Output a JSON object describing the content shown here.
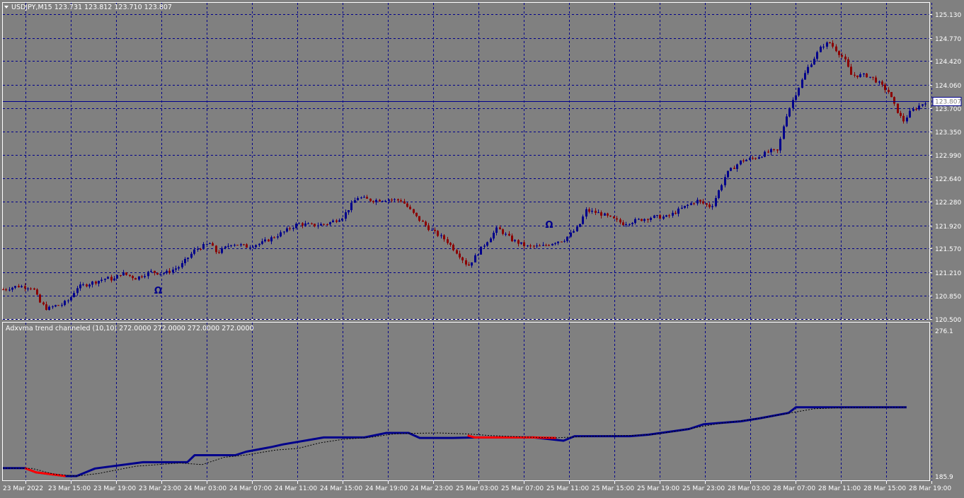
{
  "chart": {
    "symbol_header": "USDJPY,M15  123.731 123.812 123.710 123.807",
    "current_price_label": "123.807",
    "indicator_header": "Adxvma trend channeled (10,10) 272.0000 272.0000 272.0000 272.0000",
    "colors": {
      "background": "#808080",
      "grid": "#00008b",
      "bull_candle": "#00008b",
      "bear_candle": "#8b0000",
      "uptrend": "#00008b",
      "downtrend": "#ff0000",
      "signal_dotted": "#000000",
      "axis_text": "#ffffff"
    }
  },
  "chart_data": [
    {
      "type": "candlestick",
      "title": "USDJPY,M15",
      "x_tick_labels": [
        "23 Mar 2022",
        "23 Mar 15:00",
        "23 Mar 19:00",
        "23 Mar 23:00",
        "24 Mar 03:00",
        "24 Mar 07:00",
        "24 Mar 11:00",
        "24 Mar 15:00",
        "24 Mar 19:00",
        "24 Mar 23:00",
        "25 Mar 03:00",
        "25 Mar 07:00",
        "25 Mar 11:00",
        "25 Mar 15:00",
        "25 Mar 19:00",
        "25 Mar 23:00",
        "28 Mar 03:00",
        "28 Mar 07:00",
        "28 Mar 11:00",
        "28 Mar 15:00",
        "28 Mar 19:00"
      ],
      "y_tick_labels": [
        "125.130",
        "124.770",
        "124.420",
        "124.060",
        "123.700",
        "123.350",
        "122.990",
        "122.640",
        "122.280",
        "121.920",
        "121.570",
        "121.210",
        "120.850",
        "120.500"
      ],
      "ylim": [
        120.5,
        125.13
      ],
      "last_price": 123.807,
      "close_path": [
        [
          0,
          120.95
        ],
        [
          4,
          121.0
        ],
        [
          8,
          120.98
        ],
        [
          10,
          120.75
        ],
        [
          12,
          120.65
        ],
        [
          14,
          120.7
        ],
        [
          16,
          120.72
        ],
        [
          18,
          120.8
        ],
        [
          20,
          120.98
        ],
        [
          24,
          121.05
        ],
        [
          28,
          121.12
        ],
        [
          30,
          121.1
        ],
        [
          32,
          121.2
        ],
        [
          36,
          121.12
        ],
        [
          40,
          121.22
        ],
        [
          42,
          121.2
        ],
        [
          44,
          121.2
        ],
        [
          48,
          121.3
        ],
        [
          52,
          121.55
        ],
        [
          56,
          121.65
        ],
        [
          58,
          121.5
        ],
        [
          62,
          121.65
        ],
        [
          66,
          121.6
        ],
        [
          70,
          121.65
        ],
        [
          76,
          121.82
        ],
        [
          80,
          121.95
        ],
        [
          84,
          121.92
        ],
        [
          88,
          121.95
        ],
        [
          92,
          122.05
        ],
        [
          96,
          122.35
        ],
        [
          100,
          122.3
        ],
        [
          104,
          122.32
        ],
        [
          108,
          122.3
        ],
        [
          112,
          122.05
        ],
        [
          116,
          121.85
        ],
        [
          120,
          121.7
        ],
        [
          124,
          121.45
        ],
        [
          126,
          121.3
        ],
        [
          130,
          121.6
        ],
        [
          134,
          121.88
        ],
        [
          138,
          121.7
        ],
        [
          142,
          121.6
        ],
        [
          146,
          121.6
        ],
        [
          150,
          121.68
        ],
        [
          152,
          121.7
        ],
        [
          156,
          121.9
        ],
        [
          158,
          122.15
        ],
        [
          162,
          122.1
        ],
        [
          166,
          122.0
        ],
        [
          168,
          121.95
        ],
        [
          172,
          122.0
        ],
        [
          176,
          122.05
        ],
        [
          180,
          122.05
        ],
        [
          184,
          122.18
        ],
        [
          188,
          122.3
        ],
        [
          192,
          122.2
        ],
        [
          196,
          122.7
        ],
        [
          200,
          122.9
        ],
        [
          204,
          122.95
        ],
        [
          208,
          123.05
        ],
        [
          210,
          123.05
        ],
        [
          212,
          123.55
        ],
        [
          214,
          123.82
        ],
        [
          218,
          124.3
        ],
        [
          222,
          124.65
        ],
        [
          224,
          124.7
        ],
        [
          228,
          124.45
        ],
        [
          230,
          124.2
        ],
        [
          234,
          124.2
        ],
        [
          236,
          124.15
        ],
        [
          240,
          123.95
        ],
        [
          242,
          123.7
        ],
        [
          244,
          123.5
        ],
        [
          246,
          123.65
        ],
        [
          250,
          123.8
        ]
      ],
      "marker_glyph": "Ω"
    },
    {
      "type": "line",
      "title": "Adxvma trend channeled (10,10)",
      "values_shown": [
        272.0,
        272.0,
        272.0,
        272.0
      ],
      "y_tick_labels": [
        "276.1",
        "185.9"
      ],
      "ylim": [
        185.9,
        276.1
      ],
      "series": [
        {
          "color": "#00008b",
          "role": "uptrend",
          "x": [
            0,
            6,
            9,
            17,
            20,
            25,
            38,
            50,
            52,
            63,
            66,
            73,
            76,
            87,
            98,
            104,
            110,
            113,
            122,
            128,
            144,
            152,
            155,
            170,
            175,
            186,
            190,
            200,
            205,
            213,
            215,
            233,
            245
          ],
          "y": [
            190.8,
            190.8,
            188.2,
            185.9,
            185.9,
            190.6,
            194.5,
            194.5,
            198.8,
            198.8,
            201.0,
            204.0,
            205.5,
            209.8,
            209.8,
            212.6,
            212.6,
            209.5,
            209.5,
            209.8,
            209.8,
            207.8,
            210.6,
            210.6,
            211.5,
            215.0,
            218.0,
            219.8,
            221.6,
            225.0,
            228.5,
            228.5,
            228.5
          ]
        },
        {
          "color": "#ff0000",
          "role": "downtrend",
          "x": [
            6,
            9,
            17
          ],
          "y": [
            190.8,
            188.2,
            185.9
          ]
        },
        {
          "color": "#ff0000",
          "role": "downtrend",
          "x": [
            126,
            128,
            144,
            150
          ],
          "y": [
            211.0,
            209.8,
            209.8,
            209.5
          ]
        },
        {
          "color": "#000000",
          "role": "signal",
          "x": [
            0,
            8,
            14,
            20,
            26,
            36,
            48,
            54,
            60,
            66,
            74,
            80,
            86,
            92,
            100,
            106,
            112,
            118,
            126,
            132,
            142,
            150,
            158,
            164,
            170,
            176,
            182,
            188,
            194,
            200,
            206,
            212,
            220,
            228,
            245
          ],
          "y": [
            190.8,
            190.6,
            187.0,
            185.9,
            187.5,
            192.0,
            194.0,
            193.0,
            197.5,
            199.0,
            202.0,
            203.0,
            206.5,
            208.6,
            210.0,
            212.0,
            212.4,
            212.6,
            212.0,
            211.0,
            210.0,
            209.6,
            210.4,
            210.8,
            211.0,
            211.6,
            213.5,
            216.0,
            218.4,
            220.0,
            222.0,
            224.4,
            227.6,
            228.3,
            228.5
          ]
        }
      ]
    }
  ]
}
